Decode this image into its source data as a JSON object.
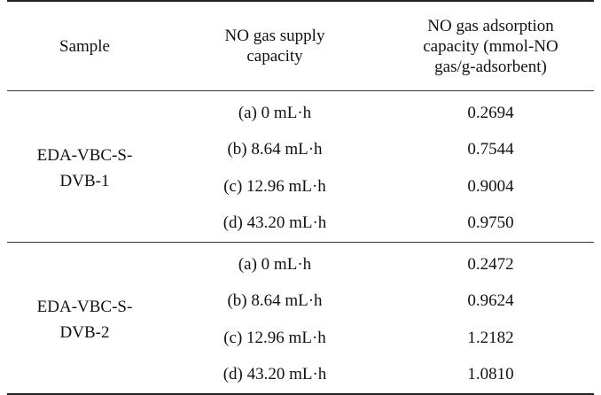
{
  "table": {
    "headers": {
      "sample": "Sample",
      "supply": [
        "NO gas supply",
        "capacity"
      ],
      "adsorption": [
        "NO gas adsorption",
        "capacity (mmol-NO",
        "gas/g-adsorbent)"
      ]
    },
    "groups": [
      {
        "sample_lines": [
          "EDA-VBC-S-",
          "DVB-1"
        ],
        "rows": [
          {
            "supply": "(a) 0 mL·h",
            "capacity": "0.2694"
          },
          {
            "supply": "(b) 8.64 mL·h",
            "capacity": "0.7544"
          },
          {
            "supply": "(c) 12.96 mL·h",
            "capacity": "0.9004"
          },
          {
            "supply": "(d) 43.20 mL·h",
            "capacity": "0.9750"
          }
        ]
      },
      {
        "sample_lines": [
          "EDA-VBC-S-",
          "DVB-2"
        ],
        "rows": [
          {
            "supply": "(a) 0 mL·h",
            "capacity": "0.2472"
          },
          {
            "supply": "(b) 8.64 mL·h",
            "capacity": "0.9624"
          },
          {
            "supply": "(c) 12.96 mL·h",
            "capacity": "1.2182"
          },
          {
            "supply": "(d) 43.20 mL·h",
            "capacity": "1.0810"
          }
        ]
      }
    ]
  }
}
